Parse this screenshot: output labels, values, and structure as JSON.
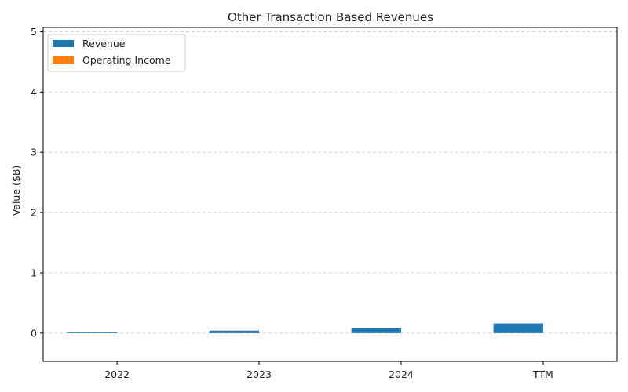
{
  "chart_data": {
    "type": "bar",
    "title": "Other Transaction Based Revenues",
    "xlabel": "",
    "ylabel": "Value ($B)",
    "categories": [
      "2022",
      "2023",
      "2024",
      "TTM"
    ],
    "series": [
      {
        "name": "Revenue",
        "color": "#1f77b4",
        "values": [
          0.01,
          0.04,
          0.08,
          0.16
        ]
      },
      {
        "name": "Operating Income",
        "color": "#ff7f0e",
        "values": [
          0,
          0,
          0,
          0
        ]
      }
    ],
    "ylim": [
      -0.47,
      5.07
    ],
    "yticks": [
      "0",
      "1",
      "2",
      "3",
      "4",
      "5"
    ],
    "grid": "horizontal dashed",
    "legend_position": "top-left"
  }
}
